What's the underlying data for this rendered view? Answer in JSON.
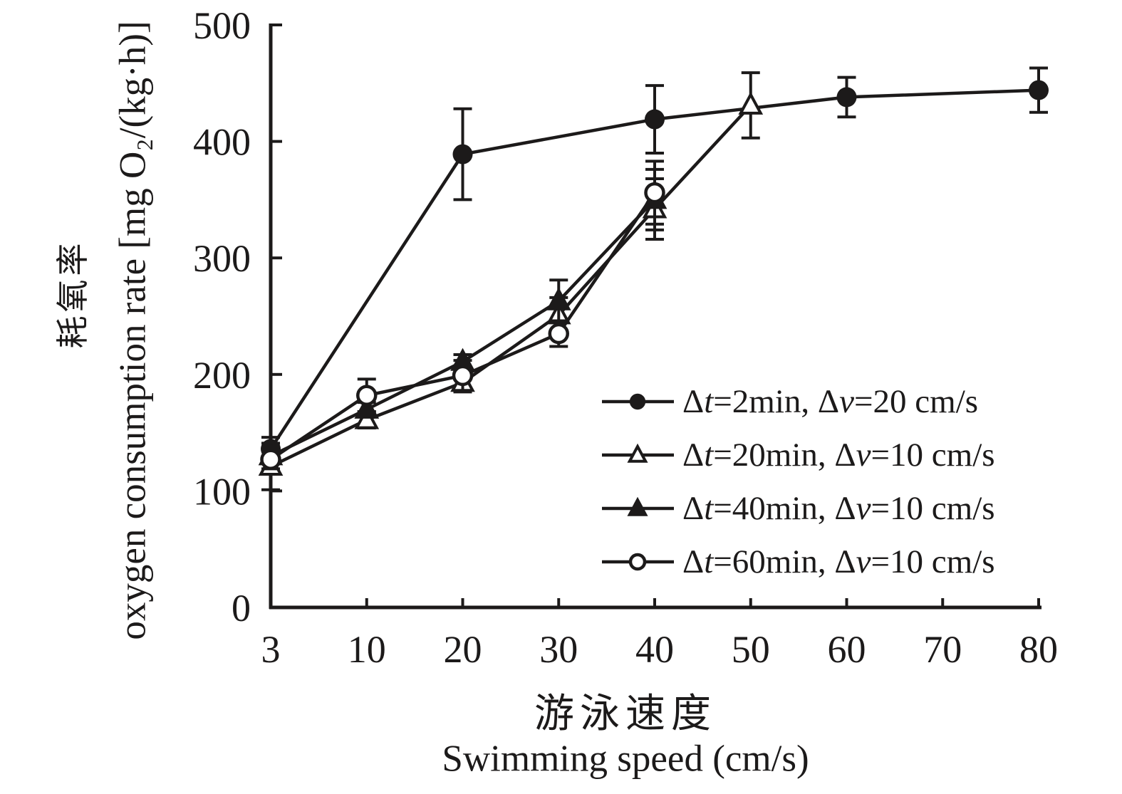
{
  "figure": {
    "background": "#ffffff",
    "ink": "#1c1a1a"
  },
  "y_axis": {
    "title_zh": "耗氧率",
    "title_en": "oxygen consumption rate [mg O₂/(kg·h)]",
    "tick_labels": [
      0,
      100,
      200,
      300,
      400,
      500
    ]
  },
  "x_axis": {
    "title_zh": "游泳速度",
    "title_en": "Swimming speed (cm/s)",
    "tick_labels": [
      3,
      10,
      20,
      30,
      40,
      50,
      60,
      70,
      80
    ]
  },
  "chart_data": {
    "type": "line",
    "title": "",
    "xlabel": "游泳速度 Swimming speed (cm/s)",
    "ylabel": "耗氧率 oxygen consumption rate [mg O₂/(kg·h)]",
    "x_categories": [
      3,
      10,
      20,
      30,
      40,
      50,
      60,
      70,
      80
    ],
    "ylim": [
      0,
      500
    ],
    "grid": false,
    "legend_position": "inside-lower-right",
    "error_bars": true,
    "series": [
      {
        "id": "dt2min",
        "name": "Δt=2min, Δv=20 cm/s",
        "marker": "circle-filled",
        "x": [
          3,
          20,
          40,
          60,
          80
        ],
        "y": [
          136,
          389,
          419,
          438,
          444
        ],
        "err": [
          10,
          39,
          29,
          17,
          19
        ]
      },
      {
        "id": "dt20min",
        "name": "Δt=20min, Δv=10 cm/s",
        "marker": "triangle-open",
        "x": [
          3,
          10,
          20,
          30,
          40,
          50
        ],
        "y": [
          121,
          161,
          193,
          251,
          342,
          431
        ],
        "err": [
          20,
          7,
          8,
          15,
          26,
          28
        ]
      },
      {
        "id": "dt40min",
        "name": "Δt=40min, Δv=10 cm/s",
        "marker": "triangle-filled",
        "x": [
          3,
          10,
          20,
          30,
          40
        ],
        "y": [
          130,
          170,
          211,
          263,
          350
        ],
        "err": [
          6,
          6,
          6,
          18,
          26
        ]
      },
      {
        "id": "dt60min",
        "name": "Δt=60min, Δv=10 cm/s",
        "marker": "circle-open",
        "x": [
          3,
          10,
          20,
          30,
          40
        ],
        "y": [
          127,
          182,
          199,
          235,
          356
        ],
        "err": [
          8,
          14,
          13,
          11,
          27
        ]
      }
    ]
  }
}
